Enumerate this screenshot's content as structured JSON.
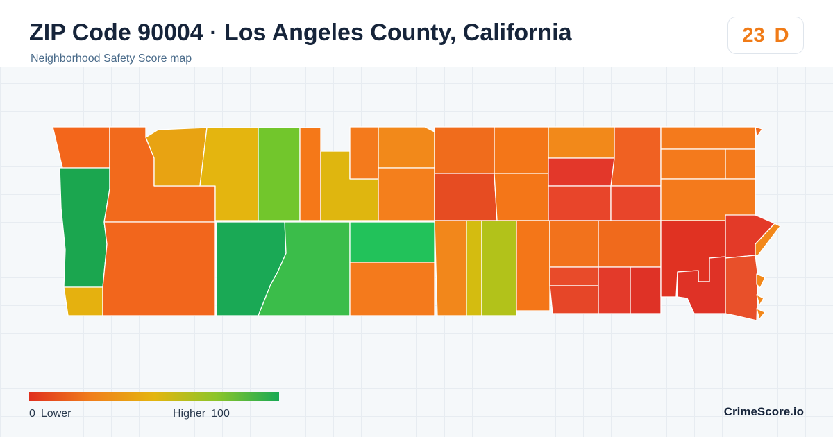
{
  "header": {
    "title": "ZIP Code 90004 · Los Angeles County, California",
    "subtitle": "Neighborhood Safety Score map"
  },
  "score": {
    "value": "23",
    "grade": "D",
    "color": "#f07b17"
  },
  "legend": {
    "min_value": "0",
    "min_label": "Lower",
    "max_label": "Higher",
    "max_value": "100",
    "colors": [
      "#e0301e",
      "#f07f1b",
      "#e4b50f",
      "#8bc52a",
      "#18a954"
    ]
  },
  "brand": "CrimeScore.io",
  "map": {
    "type": "choropleth",
    "region_count": 38
  }
}
